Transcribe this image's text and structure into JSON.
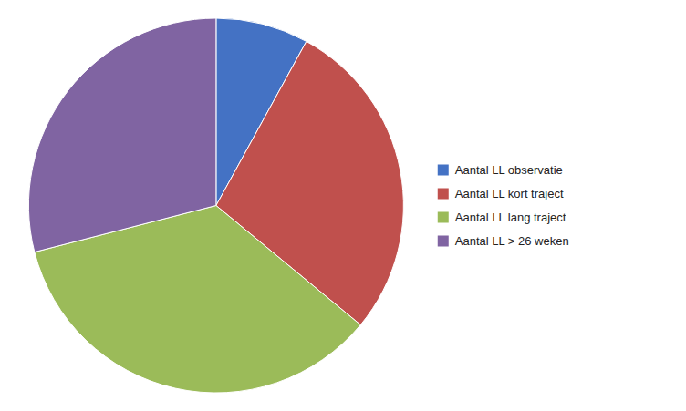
{
  "chart_data": {
    "type": "pie",
    "categories": [
      "Aantal LL observatie",
      "Aantal LL kort traject",
      "Aantal LL lang traject",
      "Aantal LL > 26 weken"
    ],
    "values": [
      8,
      28,
      35,
      29
    ],
    "colors": [
      "#4472C4",
      "#C0504D",
      "#9BBB59",
      "#8064A2"
    ],
    "legend": "right"
  }
}
